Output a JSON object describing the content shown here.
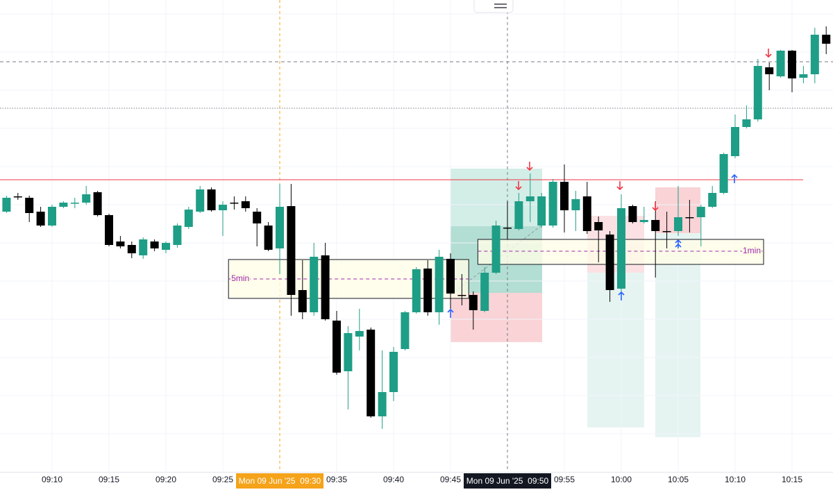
{
  "chart_data": {
    "type": "candlestick",
    "up_color": "#1e9e86",
    "down_color": "#000000",
    "ylim": [
      20,
      700
    ],
    "categories": [
      null,
      null,
      null,
      null,
      "09:10",
      null,
      null,
      null,
      null,
      "09:15",
      null,
      null,
      null,
      null,
      "09:20",
      null,
      null,
      null,
      null,
      "09:25",
      null,
      null,
      null,
      null,
      "Mon 09 Jun '25  09:30",
      null,
      null,
      null,
      null,
      "09:35",
      null,
      null,
      null,
      null,
      "09:40",
      null,
      null,
      null,
      null,
      "09:45",
      null,
      null,
      null,
      null,
      "Mon 09 Jun '25  09:50",
      null,
      null,
      null,
      null,
      "09:55",
      null,
      null,
      null,
      null,
      "10:00",
      null,
      null,
      null,
      null,
      "10:05",
      null,
      null,
      null,
      null,
      "10:10",
      null,
      null,
      null,
      null,
      "10:15",
      null,
      null,
      null
    ],
    "highlighted_categories": [
      {
        "index": 24,
        "color": "#f5a31a"
      },
      {
        "index": 44,
        "color": "#131722"
      }
    ],
    "open": [
      395,
      417,
      415,
      395,
      375,
      402,
      407,
      408,
      423,
      390,
      352,
      347,
      332,
      352,
      340,
      347,
      373,
      395,
      427,
      397,
      408,
      410,
      395,
      375,
      342,
      403,
      282,
      250,
      332,
      238,
      165,
      215,
      225,
      100,
      135,
      197,
      250,
      313,
      250,
      327,
      275,
      275,
      252,
      307,
      372,
      370,
      410,
      375,
      375,
      438,
      397,
      417,
      380,
      362,
      284,
      403,
      380,
      383,
      367,
      367,
      387,
      387,
      402,
      422,
      475,
      517,
      528,
      603,
      590,
      627,
      588,
      593,
      650
    ],
    "high": [
      418,
      422,
      418,
      402,
      405,
      410,
      415,
      432,
      425,
      392,
      360,
      352,
      358,
      355,
      352,
      378,
      402,
      432,
      430,
      410,
      417,
      417,
      400,
      380,
      435,
      435,
      325,
      350,
      350,
      252,
      230,
      255,
      228,
      195,
      200,
      252,
      315,
      325,
      340,
      335,
      305,
      280,
      315,
      382,
      410,
      422,
      450,
      422,
      442,
      463,
      425,
      438,
      388,
      367,
      420,
      405,
      402,
      410,
      395,
      432,
      412,
      405,
      432,
      480,
      535,
      548,
      615,
      610,
      628,
      628,
      605,
      660,
      662
    ],
    "low": [
      393,
      412,
      380,
      373,
      373,
      400,
      400,
      405,
      388,
      345,
      342,
      328,
      327,
      338,
      335,
      343,
      370,
      393,
      395,
      360,
      398,
      395,
      345,
      338,
      305,
      245,
      240,
      245,
      238,
      160,
      110,
      195,
      98,
      82,
      122,
      195,
      248,
      245,
      232,
      255,
      260,
      225,
      250,
      305,
      355,
      368,
      380,
      372,
      372,
      365,
      367,
      363,
      322,
      265,
      280,
      378,
      378,
      300,
      342,
      360,
      365,
      345,
      400,
      420,
      472,
      515,
      525,
      570,
      588,
      567,
      580,
      580,
      622
    ],
    "close": [
      415,
      416,
      393,
      375,
      402,
      408,
      408,
      420,
      390,
      347,
      345,
      335,
      355,
      342,
      350,
      375,
      398,
      427,
      397,
      405,
      407,
      400,
      378,
      340,
      402,
      275,
      250,
      330,
      240,
      163,
      220,
      223,
      100,
      135,
      193,
      250,
      312,
      250,
      330,
      277,
      274,
      253,
      307,
      375,
      371,
      410,
      417,
      417,
      438,
      397,
      413,
      367,
      368,
      282,
      400,
      380,
      383,
      367,
      366,
      387,
      386,
      402,
      422,
      478,
      517,
      528,
      605,
      593,
      627,
      587,
      593,
      650,
      637
    ],
    "levels": [
      {
        "value": 441,
        "color": "#f23645",
        "style": "solid"
      },
      {
        "value": 611,
        "color": "#787b86",
        "style": "dashed"
      },
      {
        "value": 544,
        "color": "#787b86",
        "style": "dotted"
      }
    ],
    "zones": [
      {
        "label": "5min",
        "start": 20,
        "end": 41.1,
        "top": 326,
        "bottom": 270,
        "mid": 298,
        "align": "left"
      },
      {
        "label": "1min",
        "start": 41.9,
        "end": 67,
        "top": 355,
        "bottom": 319,
        "mid": 338,
        "align": "right"
      }
    ]
  }
}
